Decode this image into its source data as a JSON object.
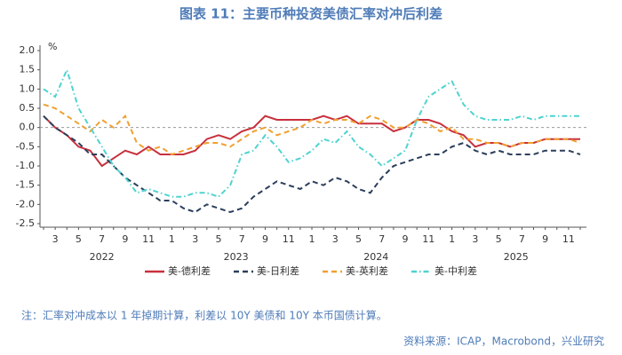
{
  "chart_data": {
    "type": "line",
    "title": "图表 11：主要币种投资美债汇率对冲后利差",
    "y_unit": "%",
    "x": [
      "2022-02",
      "2022-03",
      "2022-04",
      "2022-05",
      "2022-06",
      "2022-07",
      "2022-08",
      "2022-09",
      "2022-10",
      "2022-11",
      "2022-12",
      "2023-01",
      "2023-02",
      "2023-03",
      "2023-04",
      "2023-05",
      "2023-06",
      "2023-07",
      "2023-08",
      "2023-09",
      "2023-10",
      "2023-11",
      "2023-12",
      "2024-01",
      "2024-02",
      "2024-03",
      "2024-04",
      "2024-05",
      "2024-06",
      "2024-07",
      "2024-08",
      "2024-09",
      "2024-10",
      "2024-11",
      "2024-12",
      "2025-01",
      "2025-02",
      "2025-03",
      "2025-04",
      "2025-05",
      "2025-06",
      "2025-07",
      "2025-08",
      "2025-09",
      "2025-10",
      "2025-11",
      "2025-12"
    ],
    "xticks": [
      {
        "value": "2022-03",
        "label": "3"
      },
      {
        "value": "2022-05",
        "label": "5"
      },
      {
        "value": "2022-07",
        "label": "7"
      },
      {
        "value": "2022-09",
        "label": "9"
      },
      {
        "value": "2022-11",
        "label": "11"
      },
      {
        "value": "2023-01",
        "label": "1"
      },
      {
        "value": "2023-03",
        "label": "3"
      },
      {
        "value": "2023-05",
        "label": "5"
      },
      {
        "value": "2023-07",
        "label": "7"
      },
      {
        "value": "2023-09",
        "label": "9"
      },
      {
        "value": "2023-11",
        "label": "11"
      },
      {
        "value": "2024-01",
        "label": "1"
      },
      {
        "value": "2024-03",
        "label": "3"
      },
      {
        "value": "2024-05",
        "label": "5"
      },
      {
        "value": "2024-07",
        "label": "7"
      },
      {
        "value": "2024-09",
        "label": "9"
      },
      {
        "value": "2024-11",
        "label": "11"
      },
      {
        "value": "2025-01",
        "label": "1"
      },
      {
        "value": "2025-03",
        "label": "3"
      },
      {
        "value": "2025-05",
        "label": "5"
      },
      {
        "value": "2025-07",
        "label": "7"
      },
      {
        "value": "2025-09",
        "label": "9"
      },
      {
        "value": "2025-11",
        "label": "11"
      }
    ],
    "years": [
      "2022",
      "2023",
      "2024",
      "2025"
    ],
    "ylim": [
      -2.5,
      2.0
    ],
    "yticks": [
      {
        "value": 2.0,
        "label": "2.0"
      },
      1.5,
      {
        "value": 1.0,
        "label": "1.0"
      },
      0.5,
      {
        "value": 0.0,
        "label": "0.0"
      },
      -0.5,
      {
        "value": -1.0,
        "label": "-1.0"
      },
      -1.5,
      {
        "value": -2.0,
        "label": "-2.0"
      },
      -2.5
    ],
    "zero_line": true,
    "series": [
      {
        "name": "美-德利差",
        "color": "#c8303d",
        "style": "solid",
        "values": [
          0.3,
          0.0,
          -0.2,
          -0.5,
          -0.6,
          -1.0,
          -0.8,
          -0.6,
          -0.7,
          -0.5,
          -0.7,
          -0.7,
          -0.7,
          -0.6,
          -0.3,
          -0.2,
          -0.3,
          -0.1,
          0.0,
          0.3,
          0.2,
          0.2,
          0.2,
          0.2,
          0.3,
          0.2,
          0.3,
          0.1,
          0.1,
          0.1,
          -0.1,
          0.0,
          0.2,
          0.2,
          0.1,
          -0.1,
          -0.2,
          -0.5,
          -0.4,
          -0.4,
          -0.5,
          -0.4,
          -0.4,
          -0.3,
          -0.3,
          -0.3,
          -0.3
        ]
      },
      {
        "name": "美-日利差",
        "color": "#2b3f5c",
        "style": "dashed",
        "values": [
          0.3,
          0.0,
          -0.2,
          -0.4,
          -0.7,
          -0.7,
          -1.0,
          -1.3,
          -1.5,
          -1.7,
          -1.9,
          -1.9,
          -2.1,
          -2.2,
          -2.0,
          -2.1,
          -2.2,
          -2.1,
          -1.8,
          -1.6,
          -1.4,
          -1.5,
          -1.6,
          -1.4,
          -1.5,
          -1.3,
          -1.4,
          -1.6,
          -1.7,
          -1.3,
          -1.0,
          -0.9,
          -0.8,
          -0.7,
          -0.7,
          -0.5,
          -0.4,
          -0.6,
          -0.7,
          -0.6,
          -0.7,
          -0.7,
          -0.7,
          -0.6,
          -0.6,
          -0.6,
          -0.7
        ]
      },
      {
        "name": "美-英利差",
        "color": "#f0a030",
        "style": "dashed",
        "values": [
          0.6,
          0.5,
          0.3,
          0.1,
          -0.1,
          0.2,
          0.0,
          0.3,
          -0.4,
          -0.6,
          -0.5,
          -0.7,
          -0.6,
          -0.5,
          -0.4,
          -0.4,
          -0.5,
          -0.3,
          -0.1,
          0.0,
          -0.2,
          -0.1,
          0.0,
          0.2,
          0.1,
          0.2,
          0.2,
          0.1,
          0.3,
          0.2,
          0.0,
          0.0,
          0.2,
          0.1,
          -0.1,
          0.0,
          -0.3,
          -0.3,
          -0.4,
          -0.4,
          -0.5,
          -0.4,
          -0.4,
          -0.3,
          -0.3,
          -0.3,
          -0.4
        ]
      },
      {
        "name": "美-中利差",
        "color": "#4fd3d0",
        "style": "dashdot",
        "values": [
          1.0,
          0.8,
          1.5,
          0.5,
          0.0,
          -0.5,
          -1.0,
          -1.3,
          -1.7,
          -1.6,
          -1.7,
          -1.8,
          -1.8,
          -1.7,
          -1.7,
          -1.8,
          -1.5,
          -0.7,
          -0.6,
          -0.2,
          -0.5,
          -0.9,
          -0.8,
          -0.6,
          -0.3,
          -0.4,
          -0.1,
          -0.5,
          -0.7,
          -1.0,
          -0.8,
          -0.6,
          0.2,
          0.8,
          1.0,
          1.2,
          0.6,
          0.3,
          0.2,
          0.2,
          0.2,
          0.3,
          0.2,
          0.3,
          0.3,
          0.3,
          0.3
        ]
      }
    ],
    "note": "注：汇率对冲成本以 1 年掉期计算，利差以 10Y 美债和 10Y 本币国债计算。",
    "source": "资料来源：ICAP，Macrobond，兴业研究"
  }
}
